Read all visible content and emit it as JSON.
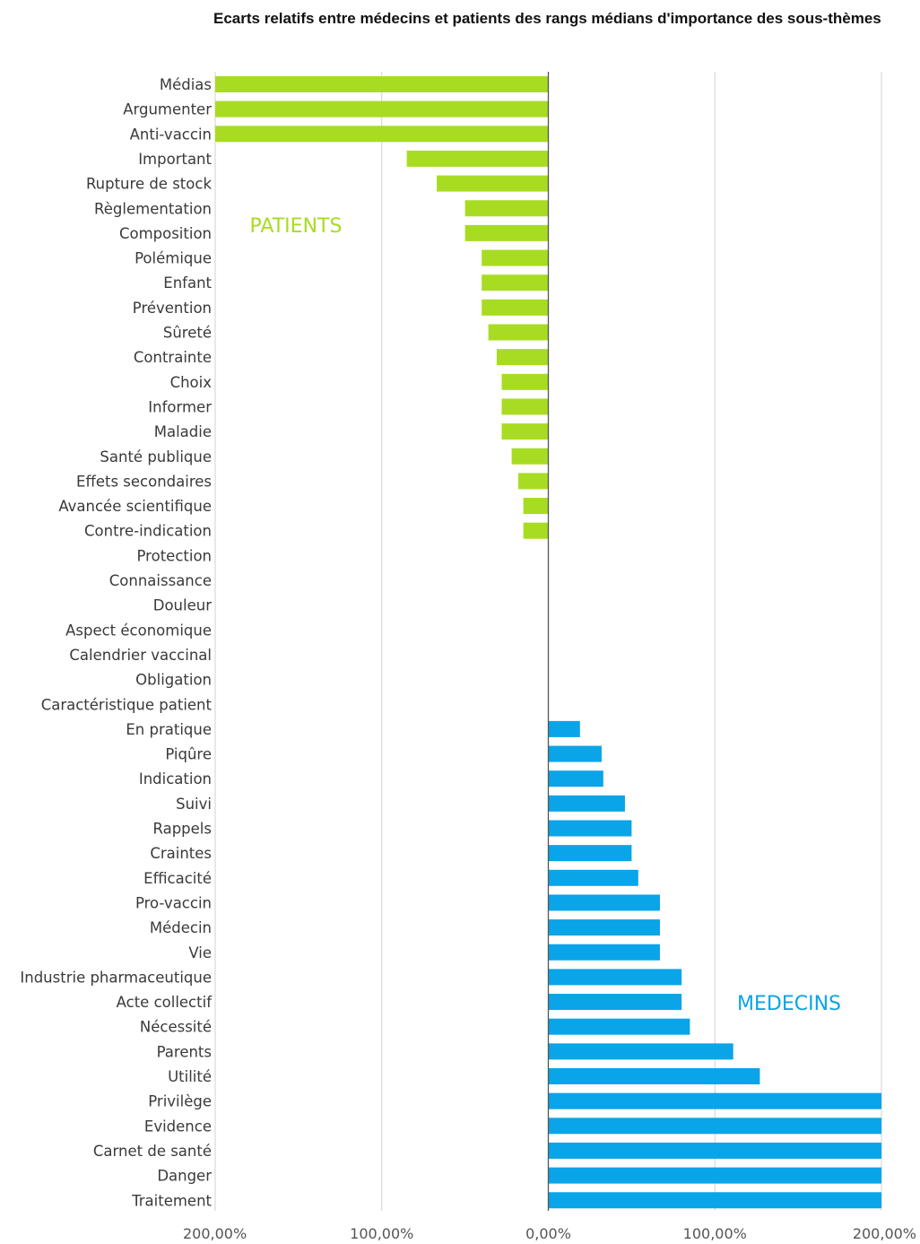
{
  "chart_data": {
    "type": "bar",
    "orientation": "horizontal",
    "title": "Ecarts relatifs entre médecins et patients des rangs médians d'importance des sous-thèmes",
    "categories": [
      "Médias",
      "Argumenter",
      "Anti-vaccin",
      "Important",
      "Rupture de stock",
      "Règlementation",
      "Composition",
      "Polémique",
      "Enfant",
      "Prévention",
      "Sûreté",
      "Contrainte",
      "Choix",
      "Informer",
      "Maladie",
      "Santé publique",
      "Effets secondaires",
      "Avancée scientifique",
      "Contre-indication",
      "Protection",
      "Connaissance",
      "Douleur",
      "Aspect économique",
      "Calendrier vaccinal",
      "Obligation",
      "Caractéristique patient",
      "En pratique",
      "Piqûre",
      "Indication",
      "Suivi",
      "Rappels",
      "Craintes",
      "Efficacité",
      "Pro-vaccin",
      "Médecin",
      "Vie",
      "Industrie pharmaceutique",
      "Acte collectif",
      "Nécessité",
      "Parents",
      "Utilité",
      "Privilège",
      "Evidence",
      "Carnet de santé",
      "Danger",
      "Traitement"
    ],
    "values": [
      -200,
      -200,
      -200,
      -85,
      -67,
      -50,
      -50,
      -40,
      -40,
      -40,
      -36,
      -31,
      -28,
      -28,
      -28,
      -22,
      -18,
      -15,
      -15,
      0,
      0,
      0,
      0,
      0,
      0,
      0,
      19,
      32,
      33,
      46,
      50,
      50,
      54,
      67,
      67,
      67,
      80,
      80,
      85,
      111,
      127,
      200,
      200,
      200,
      200,
      200
    ],
    "xlim": [
      -200,
      200
    ],
    "xticks": [
      -200,
      -100,
      0,
      100,
      200
    ],
    "xtick_labels": [
      "200,00%",
      "100,00%",
      "0,00%",
      "100,00%",
      "200,00%"
    ],
    "grid": true,
    "colors": {
      "negative": "#a8dc22",
      "positive": "#0aa4e8",
      "grid": "#d0d0d0",
      "axis": "#555555"
    },
    "annotations": [
      {
        "text": "PATIENTS",
        "color": "#a8dc22"
      },
      {
        "text": "MEDECINS",
        "color": "#0aa4e8"
      }
    ]
  }
}
